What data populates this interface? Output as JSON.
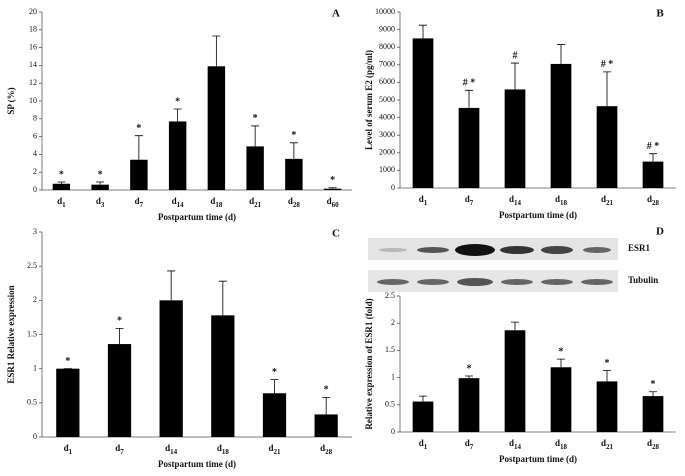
{
  "chart_data": [
    {
      "type": "bar",
      "panel_label": "A",
      "ylabel": "SP (%)",
      "xlabel": "Postpartum time (d)",
      "color": "#000000",
      "categories": [
        "d1",
        "d3",
        "d7",
        "d14",
        "d18",
        "d21",
        "d28",
        "d60"
      ],
      "values": [
        0.7,
        0.6,
        3.4,
        7.7,
        13.9,
        4.9,
        3.5,
        0.15
      ],
      "errors": [
        0.2,
        0.3,
        2.7,
        1.4,
        3.4,
        2.3,
        1.8,
        0.1
      ],
      "markers": [
        "*",
        "*",
        "*",
        "*",
        null,
        "*",
        "*",
        "*"
      ],
      "ylim": [
        0,
        20
      ],
      "yticks": [
        0,
        2,
        4,
        6,
        8,
        10,
        12,
        14,
        16,
        18,
        20
      ]
    },
    {
      "type": "bar",
      "panel_label": "B",
      "ylabel": "Level of serum E2 (pg/ml)",
      "xlabel": "Postpartum time (d)",
      "color": "#000000",
      "categories": [
        "d1",
        "d7",
        "d14",
        "d18",
        "d21",
        "d28"
      ],
      "values": [
        8500,
        4550,
        5600,
        7050,
        4650,
        1500
      ],
      "errors": [
        750,
        1000,
        1500,
        1100,
        1950,
        450
      ],
      "markers": [
        null,
        "# *",
        "#",
        null,
        "# *",
        "# *"
      ],
      "ylim": [
        0,
        10000
      ],
      "yticks": [
        0,
        1000,
        2000,
        3000,
        4000,
        5000,
        6000,
        7000,
        8000,
        9000,
        10000
      ]
    },
    {
      "type": "bar",
      "panel_label": "C",
      "ylabel": "ESR1  Relative expression",
      "xlabel": "Postpartum time (d)",
      "color": "#000000",
      "categories": [
        "d1",
        "d7",
        "d14",
        "d18",
        "d21",
        "d28"
      ],
      "values": [
        1.0,
        1.36,
        2.0,
        1.78,
        0.64,
        0.33
      ],
      "errors": [
        0,
        0.23,
        0.43,
        0.5,
        0.2,
        0.25
      ],
      "markers": [
        "*",
        "*",
        null,
        null,
        "*",
        "*"
      ],
      "ylim": [
        0,
        3
      ],
      "yticks": [
        0,
        0.5,
        1,
        1.5,
        2,
        2.5,
        3
      ]
    },
    {
      "type": "bar",
      "panel_label": "D",
      "ylabel": "Relative expression of ESR1 (fold)",
      "xlabel": "Postpartum  time (d)",
      "color": "#000000",
      "blot_labels": [
        "ESR1",
        "Tubulin"
      ],
      "categories": [
        "d1",
        "d7",
        "d14",
        "d18",
        "d21",
        "d28"
      ],
      "values": [
        0.56,
        0.99,
        1.87,
        1.19,
        0.93,
        0.66
      ],
      "errors": [
        0.1,
        0.04,
        0.15,
        0.15,
        0.2,
        0.08
      ],
      "markers": [
        null,
        "*",
        null,
        "*",
        "*",
        "*"
      ],
      "ylim": [
        0,
        2.5
      ],
      "yticks": [
        0,
        0.5,
        1,
        1.5,
        2,
        2.5
      ]
    }
  ]
}
